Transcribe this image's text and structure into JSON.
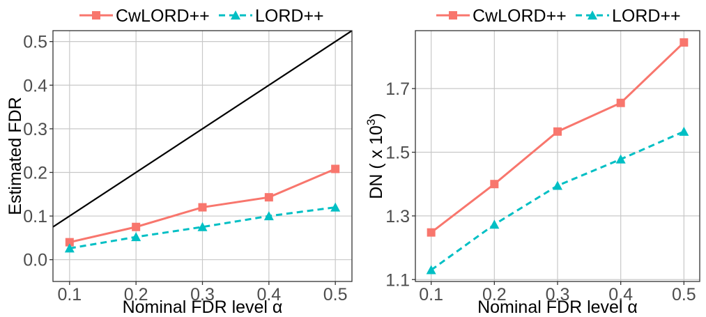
{
  "chart_data": [
    {
      "type": "line",
      "xlabel": "Nominal FDR level α",
      "ylabel": "Estimated FDR",
      "x": [
        0.1,
        0.2,
        0.3,
        0.4,
        0.5
      ],
      "xticks": [
        "0.1",
        "0.2",
        "0.3",
        "0.4",
        "0.5"
      ],
      "yticks": [
        "0.0",
        "0.1",
        "0.2",
        "0.3",
        "0.4",
        "0.5"
      ],
      "ytick_values": [
        0.0,
        0.1,
        0.2,
        0.3,
        0.4,
        0.5
      ],
      "xlim": [
        0.075,
        0.525
      ],
      "ylim": [
        -0.05,
        0.525
      ],
      "grid": true,
      "legend_position": "top",
      "reference_line": {
        "description": "y = x",
        "color": "#000000"
      },
      "series": [
        {
          "name": "CwLORD++",
          "color": "#F8766D",
          "marker": "square",
          "linestyle": "solid",
          "values": [
            0.04,
            0.075,
            0.12,
            0.143,
            0.208
          ]
        },
        {
          "name": "LORD++",
          "color": "#00BFC4",
          "marker": "triangle",
          "linestyle": "dashed",
          "values": [
            0.026,
            0.052,
            0.075,
            0.1,
            0.12
          ]
        }
      ]
    },
    {
      "type": "line",
      "xlabel": "Nominal FDR level α",
      "ylabel_main": "DN ( x 10",
      "ylabel_sup": "3",
      "ylabel_end": ")",
      "x": [
        0.1,
        0.2,
        0.3,
        0.4,
        0.5
      ],
      "xticks": [
        "0.1",
        "0.2",
        "0.3",
        "0.4",
        "0.5"
      ],
      "yticks": [
        "1.1",
        "1.3",
        "1.5",
        "1.7"
      ],
      "ytick_values": [
        1.1,
        1.3,
        1.5,
        1.7
      ],
      "xlim": [
        0.075,
        0.525
      ],
      "ylim": [
        1.094,
        1.882
      ],
      "grid": true,
      "legend_position": "top",
      "series": [
        {
          "name": "CwLORD++",
          "color": "#F8766D",
          "marker": "square",
          "linestyle": "solid",
          "values": [
            1.248,
            1.4,
            1.565,
            1.655,
            1.845
          ]
        },
        {
          "name": "LORD++",
          "color": "#00BFC4",
          "marker": "triangle",
          "linestyle": "dashed",
          "values": [
            1.13,
            1.273,
            1.395,
            1.478,
            1.565
          ]
        }
      ]
    }
  ]
}
